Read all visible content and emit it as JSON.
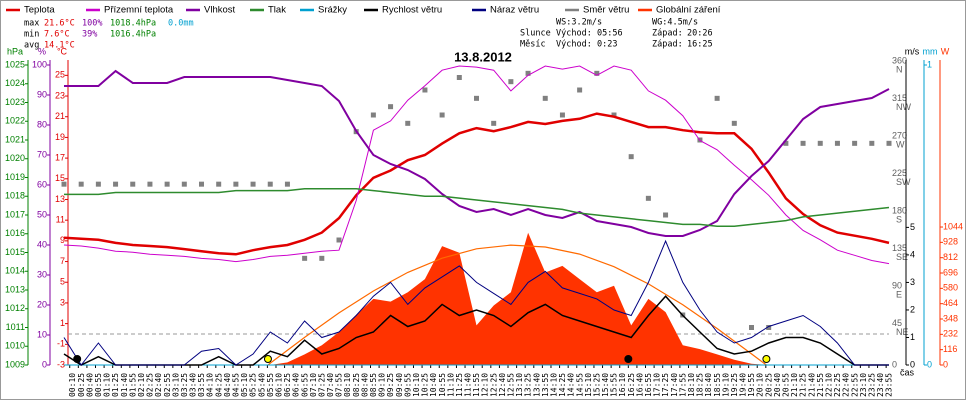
{
  "chart_data": {
    "type": "line",
    "title": "13.8.2012",
    "x_label": "čas",
    "xlim": [
      0,
      1440
    ],
    "xticks": [
      {
        "value": 10,
        "label": "00:10"
      },
      {
        "value": 25,
        "label": "00:25"
      },
      {
        "value": 40,
        "label": "00:40"
      },
      {
        "value": 55,
        "label": "00:55"
      },
      {
        "value": 70,
        "label": "01:10"
      },
      {
        "value": 85,
        "label": "01:25"
      },
      {
        "value": 100,
        "label": "01:40"
      },
      {
        "value": 115,
        "label": "01:55"
      },
      {
        "value": 130,
        "label": "02:10"
      },
      {
        "value": 145,
        "label": "02:25"
      },
      {
        "value": 160,
        "label": "02:40"
      },
      {
        "value": 175,
        "label": "02:55"
      },
      {
        "value": 190,
        "label": "03:10"
      },
      {
        "value": 205,
        "label": "03:25"
      },
      {
        "value": 220,
        "label": "03:40"
      },
      {
        "value": 235,
        "label": "03:55"
      },
      {
        "value": 250,
        "label": "04:10"
      },
      {
        "value": 265,
        "label": "04:25"
      },
      {
        "value": 280,
        "label": "04:40"
      },
      {
        "value": 295,
        "label": "04:55"
      },
      {
        "value": 310,
        "label": "05:10"
      },
      {
        "value": 325,
        "label": "05:25"
      },
      {
        "value": 340,
        "label": "05:40"
      },
      {
        "value": 355,
        "label": "05:55"
      },
      {
        "value": 370,
        "label": "06:10"
      },
      {
        "value": 385,
        "label": "06:25"
      },
      {
        "value": 400,
        "label": "06:40"
      },
      {
        "value": 415,
        "label": "06:55"
      },
      {
        "value": 430,
        "label": "07:10"
      },
      {
        "value": 445,
        "label": "07:25"
      },
      {
        "value": 460,
        "label": "07:40"
      },
      {
        "value": 475,
        "label": "07:55"
      },
      {
        "value": 490,
        "label": "08:10"
      },
      {
        "value": 505,
        "label": "08:25"
      },
      {
        "value": 520,
        "label": "08:40"
      },
      {
        "value": 535,
        "label": "08:55"
      },
      {
        "value": 550,
        "label": "09:10"
      },
      {
        "value": 565,
        "label": "09:25"
      },
      {
        "value": 580,
        "label": "09:40"
      },
      {
        "value": 595,
        "label": "09:55"
      },
      {
        "value": 610,
        "label": "10:10"
      },
      {
        "value": 625,
        "label": "10:25"
      },
      {
        "value": 640,
        "label": "10:40"
      },
      {
        "value": 655,
        "label": "10:55"
      },
      {
        "value": 670,
        "label": "11:10"
      },
      {
        "value": 685,
        "label": "11:25"
      },
      {
        "value": 700,
        "label": "11:40"
      },
      {
        "value": 715,
        "label": "11:55"
      },
      {
        "value": 730,
        "label": "12:10"
      },
      {
        "value": 745,
        "label": "12:25"
      },
      {
        "value": 760,
        "label": "12:40"
      },
      {
        "value": 775,
        "label": "12:55"
      },
      {
        "value": 790,
        "label": "13:10"
      },
      {
        "value": 805,
        "label": "13:25"
      },
      {
        "value": 820,
        "label": "13:40"
      },
      {
        "value": 835,
        "label": "13:55"
      },
      {
        "value": 850,
        "label": "14:10"
      },
      {
        "value": 865,
        "label": "14:25"
      },
      {
        "value": 880,
        "label": "14:40"
      },
      {
        "value": 895,
        "label": "14:55"
      },
      {
        "value": 910,
        "label": "15:10"
      },
      {
        "value": 925,
        "label": "15:25"
      },
      {
        "value": 940,
        "label": "15:40"
      },
      {
        "value": 955,
        "label": "15:55"
      },
      {
        "value": 970,
        "label": "16:10"
      },
      {
        "value": 985,
        "label": "16:25"
      },
      {
        "value": 1000,
        "label": "16:40"
      },
      {
        "value": 1015,
        "label": "16:55"
      },
      {
        "value": 1030,
        "label": "17:10"
      },
      {
        "value": 1045,
        "label": "17:25"
      },
      {
        "value": 1060,
        "label": "17:40"
      },
      {
        "value": 1075,
        "label": "17:55"
      },
      {
        "value": 1090,
        "label": "18:10"
      },
      {
        "value": 1105,
        "label": "18:25"
      },
      {
        "value": 1120,
        "label": "18:40"
      },
      {
        "value": 1135,
        "label": "18:55"
      },
      {
        "value": 1150,
        "label": "19:10"
      },
      {
        "value": 1165,
        "label": "19:25"
      },
      {
        "value": 1180,
        "label": "19:40"
      },
      {
        "value": 1195,
        "label": "19:55"
      },
      {
        "value": 1210,
        "label": "20:10"
      },
      {
        "value": 1225,
        "label": "20:25"
      },
      {
        "value": 1240,
        "label": "20:40"
      },
      {
        "value": 1255,
        "label": "20:55"
      },
      {
        "value": 1270,
        "label": "21:10"
      },
      {
        "value": 1285,
        "label": "21:25"
      },
      {
        "value": 1300,
        "label": "21:40"
      },
      {
        "value": 1315,
        "label": "21:55"
      },
      {
        "value": 1330,
        "label": "22:10"
      },
      {
        "value": 1345,
        "label": "22:25"
      },
      {
        "value": 1360,
        "label": "22:40"
      },
      {
        "value": 1375,
        "label": "22:55"
      },
      {
        "value": 1390,
        "label": "23:10"
      },
      {
        "value": 1405,
        "label": "23:25"
      },
      {
        "value": 1420,
        "label": "23:40"
      },
      {
        "value": 1435,
        "label": "23:55"
      }
    ],
    "axes": [
      {
        "id": "hpa",
        "title": "hPa",
        "color": "#008000",
        "lim": [
          1009,
          1025
        ],
        "ticks": [
          1009,
          1010,
          1011,
          1012,
          1013,
          1014,
          1015,
          1016,
          1017,
          1018,
          1019,
          1020,
          1021,
          1022,
          1023,
          1024,
          1025
        ]
      },
      {
        "id": "pct",
        "title": "%",
        "color": "#8000a0",
        "lim": [
          0,
          100
        ],
        "ticks": [
          0,
          10,
          20,
          30,
          40,
          50,
          60,
          70,
          80,
          90,
          100
        ]
      },
      {
        "id": "temp",
        "title": "°C",
        "color": "#e00000",
        "lim": [
          -3,
          26
        ],
        "ticks": [
          -3,
          -1,
          1,
          3,
          5,
          7,
          9,
          11,
          13,
          15,
          17,
          19,
          21,
          23,
          25
        ]
      },
      {
        "id": "dir",
        "color": "#606060",
        "lim": [
          0,
          360
        ],
        "ticks": [
          0,
          {
            "value": 45,
            "label": "NE"
          },
          {
            "value": 90,
            "label": "E"
          },
          {
            "value": 135,
            "label": "SE"
          },
          {
            "value": 180,
            "label": "S"
          },
          {
            "value": 225,
            "label": "SW"
          },
          {
            "value": 270,
            "label": "W"
          },
          {
            "value": 315,
            "label": "NW"
          },
          {
            "value": 360,
            "label": "N"
          }
        ]
      },
      {
        "id": "ms",
        "title": "m/s",
        "color": "#000000",
        "lim": [
          0,
          10.9
        ],
        "ticks": [
          0,
          1,
          2,
          3,
          4,
          5
        ]
      },
      {
        "id": "mm",
        "title": "mm",
        "color": "#00a0d0",
        "lim": [
          0,
          1
        ],
        "ticks": [
          0,
          1
        ]
      },
      {
        "id": "w",
        "title": "W",
        "color": "#ff3300",
        "lim": [
          0,
          2270
        ],
        "ticks": [
          0,
          116,
          232,
          348,
          464,
          580,
          696,
          812,
          928,
          1044
        ]
      }
    ],
    "zero_line": {
      "axis": "temp",
      "value": 0
    },
    "x": [
      0,
      30,
      60,
      90,
      120,
      150,
      180,
      210,
      240,
      270,
      300,
      330,
      360,
      390,
      420,
      450,
      480,
      510,
      540,
      570,
      600,
      630,
      660,
      690,
      720,
      750,
      780,
      810,
      840,
      870,
      900,
      930,
      960,
      990,
      1020,
      1050,
      1080,
      1110,
      1140,
      1170,
      1200,
      1230,
      1260,
      1290,
      1320,
      1350,
      1380,
      1410,
      1440
    ],
    "series": [
      {
        "name": "Teplota",
        "color": "#e00000",
        "axis": "temp",
        "kind": "line",
        "width": 2.5,
        "values": [
          9.3,
          9.2,
          9.1,
          8.8,
          8.6,
          8.5,
          8.4,
          8.2,
          8.0,
          7.8,
          7.7,
          8.1,
          8.4,
          8.6,
          9.1,
          9.8,
          11.2,
          13.4,
          15.1,
          15.8,
          16.8,
          17.3,
          18.4,
          19.4,
          19.9,
          19.6,
          20.0,
          20.5,
          20.3,
          20.6,
          20.8,
          21.3,
          21.0,
          20.5,
          20.0,
          20.0,
          19.7,
          19.5,
          19.4,
          19.4,
          17.9,
          15.6,
          13.1,
          11.6,
          10.5,
          9.8,
          9.5,
          9.2,
          8.8
        ]
      },
      {
        "name": "Přízemní teplota",
        "color": "#cc00cc",
        "axis": "temp",
        "kind": "line",
        "width": 1,
        "values": [
          8.6,
          8.5,
          8.3,
          8.0,
          7.9,
          7.7,
          7.6,
          7.5,
          7.3,
          7.2,
          7.0,
          7.2,
          7.5,
          7.6,
          7.8,
          8.0,
          8.1,
          12.9,
          19.7,
          20.6,
          22.6,
          24.0,
          25.5,
          25.9,
          25.8,
          25.5,
          23.5,
          25.0,
          25.9,
          25.6,
          25.9,
          25.0,
          25.9,
          25.5,
          23.5,
          22.6,
          21.1,
          18.7,
          17.8,
          16.3,
          14.9,
          13.4,
          11.5,
          10.0,
          9.1,
          8.1,
          7.6,
          7.1,
          6.8
        ]
      },
      {
        "name": "Vlhkost",
        "color": "#8000a0",
        "axis": "pct",
        "kind": "line",
        "width": 2,
        "values": [
          93,
          93,
          93,
          98,
          94,
          94,
          94,
          96,
          96,
          96,
          96,
          96,
          96,
          95,
          94,
          93,
          88,
          78,
          70,
          67,
          65,
          62,
          57,
          53,
          51,
          52,
          50,
          52,
          50,
          49,
          51,
          48,
          47,
          46,
          44,
          43,
          43,
          45,
          48,
          57,
          63,
          68,
          75,
          82,
          86,
          87,
          88,
          89,
          92
        ]
      },
      {
        "name": "Tlak",
        "color": "#2e8b2e",
        "axis": "hpa",
        "kind": "line",
        "width": 1.5,
        "values": [
          1018.1,
          1018.1,
          1018.1,
          1018.2,
          1018.2,
          1018.2,
          1018.2,
          1018.2,
          1018.2,
          1018.2,
          1018.3,
          1018.3,
          1018.3,
          1018.3,
          1018.4,
          1018.4,
          1018.4,
          1018.4,
          1018.3,
          1018.2,
          1018.1,
          1018.0,
          1018.0,
          1017.9,
          1017.8,
          1017.7,
          1017.6,
          1017.5,
          1017.4,
          1017.3,
          1017.1,
          1017.0,
          1016.9,
          1016.8,
          1016.7,
          1016.6,
          1016.5,
          1016.5,
          1016.4,
          1016.4,
          1016.5,
          1016.6,
          1016.7,
          1016.9,
          1017.0,
          1017.1,
          1017.2,
          1017.3,
          1017.4
        ]
      },
      {
        "name": "Srážky",
        "color": "#00a0d0",
        "axis": "mm",
        "kind": "line",
        "width": 1,
        "values": [
          0,
          0,
          0,
          0,
          0,
          0,
          0,
          0,
          0,
          0,
          0,
          0,
          0,
          0,
          0,
          0,
          0,
          0,
          0,
          0,
          0,
          0,
          0,
          0,
          0,
          0,
          0,
          0,
          0,
          0,
          0,
          0,
          0,
          0,
          0,
          0,
          0,
          0,
          0,
          0,
          0,
          0,
          0,
          0,
          0,
          0,
          0,
          0,
          0
        ]
      },
      {
        "name": "Rychlost větru",
        "color": "#000000",
        "axis": "ms",
        "kind": "line",
        "width": 1.5,
        "values": [
          0.4,
          0,
          0.3,
          0,
          0,
          0,
          0,
          0,
          0,
          0.3,
          0,
          0,
          0.5,
          0.3,
          0.9,
          0.4,
          0.6,
          1.0,
          1.2,
          1.8,
          1.4,
          1.6,
          2.2,
          1.8,
          2.0,
          1.8,
          1.4,
          1.9,
          2.2,
          1.8,
          1.6,
          1.4,
          1.2,
          1.0,
          1.8,
          2.5,
          1.8,
          1.2,
          0.6,
          0.4,
          0.5,
          0.8,
          1.0,
          1.0,
          0.8,
          0.4,
          0,
          0,
          0
        ]
      },
      {
        "name": "Náraz větru",
        "color": "#000080",
        "axis": "ms",
        "kind": "line",
        "width": 1,
        "values": [
          1.0,
          0,
          0.8,
          0,
          0,
          0,
          0,
          0,
          0.5,
          0.6,
          0,
          0.4,
          1.2,
          0.8,
          1.6,
          1.0,
          1.2,
          1.8,
          2.5,
          3.0,
          2.2,
          2.8,
          3.2,
          3.6,
          3.0,
          2.6,
          2.2,
          3.0,
          3.4,
          2.8,
          2.6,
          2.4,
          2.0,
          1.8,
          3.0,
          4.5,
          3.0,
          2.0,
          1.2,
          0.8,
          1.0,
          1.4,
          1.6,
          1.8,
          1.4,
          0.8,
          0,
          0,
          0
        ]
      },
      {
        "name": "Směr větru",
        "color": "#808080",
        "axis": "dir",
        "kind": "points",
        "values": [
          217,
          217,
          217,
          217,
          217,
          217,
          217,
          217,
          217,
          217,
          217,
          217,
          217,
          217,
          128,
          128,
          150,
          280,
          300,
          310,
          290,
          330,
          300,
          345,
          320,
          290,
          340,
          350,
          320,
          300,
          330,
          350,
          300,
          250,
          200,
          180,
          60,
          270,
          320,
          290,
          45,
          45,
          266,
          266,
          266,
          266,
          266,
          266,
          266
        ]
      },
      {
        "name": "Globální záření",
        "color": "#ff3300",
        "axis": "w",
        "kind": "area",
        "values": [
          0,
          0,
          0,
          0,
          0,
          0,
          0,
          0,
          0,
          0,
          0,
          0,
          0,
          20,
          80,
          150,
          250,
          380,
          500,
          480,
          550,
          650,
          900,
          850,
          300,
          450,
          550,
          1000,
          700,
          750,
          650,
          550,
          600,
          300,
          500,
          400,
          150,
          120,
          80,
          40,
          10,
          0,
          0,
          0,
          0,
          0,
          0,
          0,
          0
        ]
      }
    ],
    "clear_sky": {
      "color": "#ff6a00",
      "axis": "w",
      "x": [
        356,
        360,
        420,
        480,
        540,
        600,
        660,
        720,
        780,
        840,
        900,
        960,
        1020,
        1080,
        1140,
        1200,
        1226
      ],
      "values": [
        0,
        14,
        209,
        394,
        560,
        701,
        808,
        879,
        907,
        893,
        839,
        744,
        614,
        456,
        276,
        84,
        0
      ]
    },
    "stats": [
      {
        "label": "max",
        "temp": "21.6°C",
        "humidity": "100%",
        "pressure": "1018.4hPa",
        "rain": "0.0mm"
      },
      {
        "label": "min",
        "temp": "7.6°C",
        "humidity": "39%",
        "pressure": "1016.4hPa"
      },
      {
        "label": "avg",
        "temp": "14.1°C"
      }
    ],
    "wind": {
      "ws": "WS:3.2m/s",
      "wg": "WG:4.5m/s"
    },
    "sun": {
      "label": "Slunce",
      "rise_label": "Východ:",
      "rise": "05:56",
      "set_label": "Západ:",
      "set": "20:26"
    },
    "moon": {
      "label": "Měsíc",
      "rise_label": "Východ:",
      "rise": "0:23",
      "set_label": "Západ:",
      "set": "16:25"
    }
  }
}
